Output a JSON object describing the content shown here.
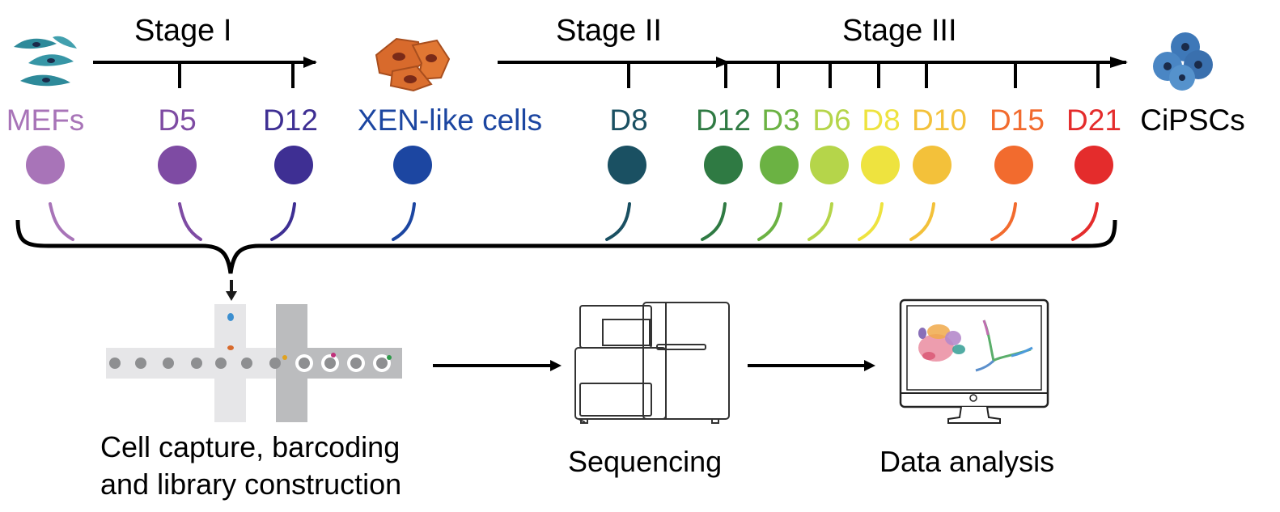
{
  "stages": {
    "stage1": "Stage I",
    "stage2": "Stage II",
    "stage3": "Stage III"
  },
  "timepoints": [
    {
      "label": "MEFs",
      "color": "#A874B8"
    },
    {
      "label": "D5",
      "color": "#7E4BA3"
    },
    {
      "label": "D12",
      "color": "#3E2F93"
    },
    {
      "label": "XEN-like cells",
      "color": "#1C46A1"
    },
    {
      "label": "D8",
      "color": "#1A5062"
    },
    {
      "label": "D12",
      "color": "#2F7A43"
    },
    {
      "label": "D3",
      "color": "#6BB243"
    },
    {
      "label": "D6",
      "color": "#B5D54A"
    },
    {
      "label": "D8",
      "color": "#EEE33F"
    },
    {
      "label": "D10",
      "color": "#F3C13A"
    },
    {
      "label": "D15",
      "color": "#F26B2E"
    },
    {
      "label": "D21",
      "color": "#E42C2C"
    }
  ],
  "endpoint": {
    "label": "CiPSCs",
    "color": "#000000"
  },
  "icons": {
    "mef": "mef-cells-icon",
    "xen": "xen-like-cells-icon",
    "cipsc": "cipsc-colony-icon",
    "chip": "microfluidic-chip-icon",
    "sequencer": "sequencer-icon",
    "monitor": "monitor-icon"
  },
  "workflow": {
    "capture_line1": "Cell capture, barcoding",
    "capture_line2": "and library construction",
    "sequencing": "Sequencing",
    "analysis": "Data analysis"
  }
}
